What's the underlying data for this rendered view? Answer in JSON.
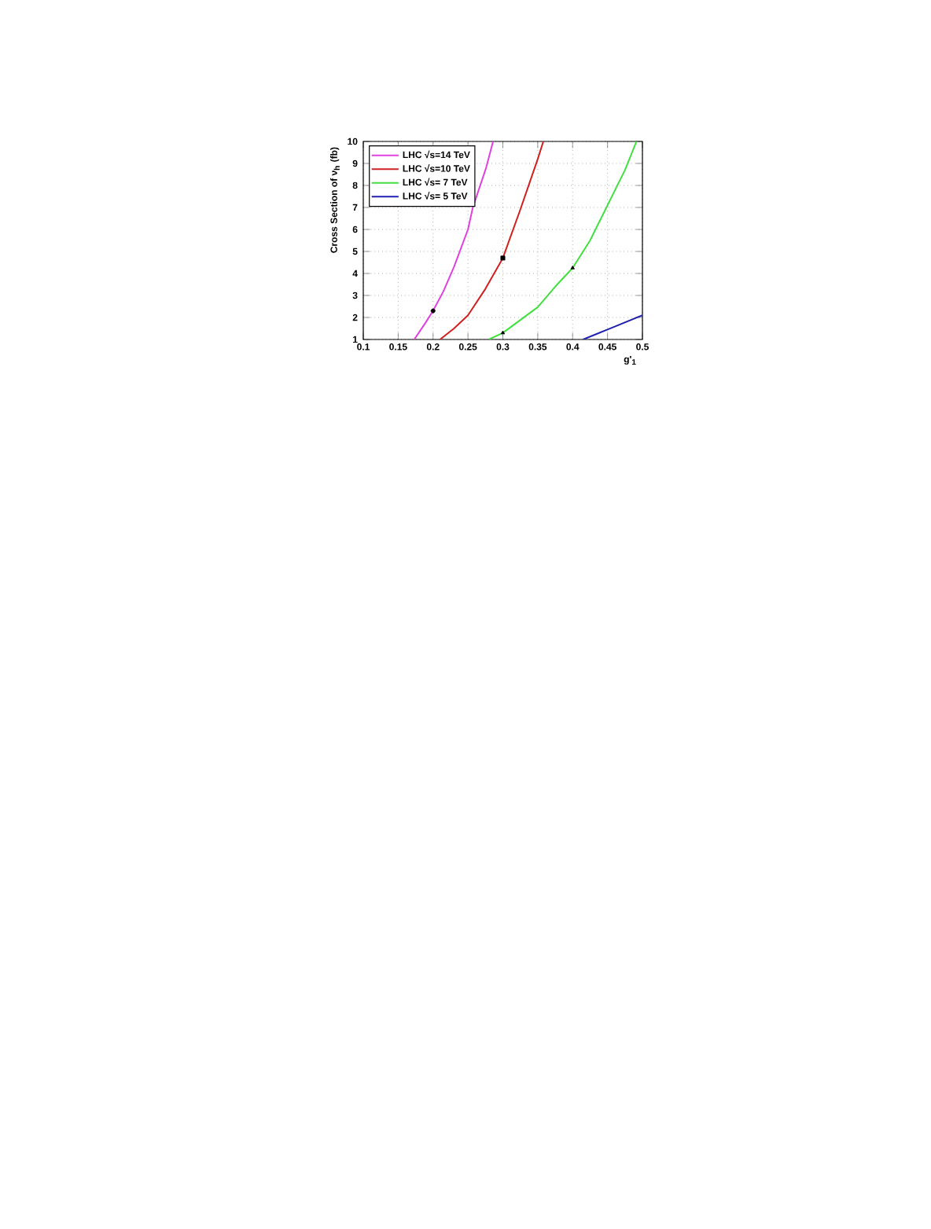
{
  "chart_data": {
    "type": "line",
    "xlabel": "g'$_{1}$",
    "ylabel": "Cross Section of ν$_{h}$ (fb)",
    "xlim": [
      0.1,
      0.5
    ],
    "ylim": [
      1,
      10
    ],
    "xticks": [
      0.1,
      0.15,
      0.2,
      0.25,
      0.3,
      0.35,
      0.4,
      0.45,
      0.5
    ],
    "yticks": [
      1,
      2,
      3,
      4,
      5,
      6,
      7,
      8,
      9,
      10
    ],
    "grid": true,
    "legend": "top left",
    "line_style": "solid",
    "series": [
      {
        "name": "LHC √s=14 TeV",
        "color": "#e040e0",
        "x": [
          0.173,
          0.19,
          0.2,
          0.215,
          0.23,
          0.25,
          0.257,
          0.276,
          0.286
        ],
        "values": [
          1,
          1.8,
          2.3,
          3.2,
          4.3,
          6.0,
          7.0,
          8.8,
          10
        ]
      },
      {
        "name": "LHC √s=10 TeV",
        "color": "#d02020",
        "x": [
          0.21,
          0.23,
          0.25,
          0.275,
          0.3,
          0.325,
          0.35,
          0.358
        ],
        "values": [
          1,
          1.5,
          2.1,
          3.3,
          4.7,
          6.9,
          9.2,
          10
        ]
      },
      {
        "name": "LHC √s= 7 TeV",
        "color": "#40e040",
        "x": [
          0.28,
          0.3,
          0.35,
          0.375,
          0.4,
          0.425,
          0.45,
          0.475,
          0.4915
        ],
        "values": [
          1,
          1.3,
          2.47,
          3.4,
          4.25,
          5.5,
          7.1,
          8.7,
          10
        ]
      },
      {
        "name": "LHC √s= 5 TeV",
        "color": "#2020b0",
        "x": [
          0.415,
          0.45,
          0.5
        ],
        "values": [
          1,
          1.45,
          2.1
        ]
      },
      {
        "type": "scatter",
        "color": "#000000",
        "marker": "circle",
        "x": [
          0.2
        ],
        "values": [
          2.3
        ]
      },
      {
        "type": "scatter",
        "color": "#000000",
        "marker": "square",
        "x": [
          0.3
        ],
        "values": [
          4.7
        ]
      },
      {
        "type": "scatter",
        "color": "#000000",
        "marker": "triangle",
        "x": [
          0.3,
          0.4
        ],
        "values": [
          1.3,
          4.25
        ]
      }
    ]
  }
}
